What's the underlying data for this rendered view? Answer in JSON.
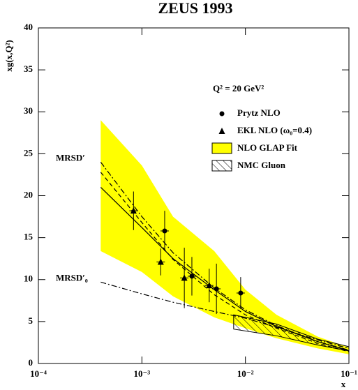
{
  "chart_data": {
    "type": "scatter",
    "title": "ZEUS 1993",
    "y_label": "xg(x,Q²)",
    "x_label": "x",
    "log_x": true,
    "xlim": [
      0.0001,
      0.1
    ],
    "xticks": [
      {
        "value": 0.0001,
        "label": "10⁻⁴"
      },
      {
        "value": 0.001,
        "label": "10⁻³"
      },
      {
        "value": 0.01,
        "label": "10⁻²"
      },
      {
        "value": 0.1,
        "label": "10⁻¹"
      }
    ],
    "ylim": [
      0,
      40
    ],
    "yticks": [
      0,
      5,
      10,
      15,
      20,
      25,
      30,
      35,
      40
    ],
    "legend_title": "Q² = 20 GeV²",
    "series": [
      {
        "name": "Prytz NLO",
        "marker": "circle",
        "color": "#000000",
        "x": [
          0.00166,
          0.00304,
          0.00525,
          0.009
        ],
        "values": [
          15.8,
          10.4,
          8.9,
          8.4
        ],
        "errors": [
          2.4,
          2.3,
          3.0,
          1.9
        ]
      },
      {
        "name": "EKL NLO (ω₀=0.4)",
        "marker": "triangle",
        "color": "#000000",
        "x": [
          0.00083,
          0.00152,
          0.00257,
          0.00447
        ],
        "values": [
          18.2,
          12.1,
          10.2,
          9.3
        ],
        "errors": [
          2.3,
          1.6,
          3.6,
          2.0
        ]
      },
      {
        "name": "NLO GLAP Fit",
        "marker": "band",
        "color": "#ffff00",
        "x": [
          0.0004,
          0.001,
          0.002,
          0.005,
          0.01,
          0.02,
          0.05,
          0.1
        ],
        "upper": [
          29,
          23.6,
          17.5,
          13.4,
          8.8,
          5.8,
          3.2,
          1.9
        ],
        "lower": [
          13.4,
          10.9,
          8.0,
          5.5,
          4.2,
          3.0,
          1.8,
          1.1
        ]
      },
      {
        "name": "NMC Gluon",
        "marker": "hatch",
        "color": "#000000",
        "x": [
          0.0077,
          0.02,
          0.05,
          0.1
        ],
        "upper": [
          5.8,
          4.7,
          2.9,
          2.0
        ],
        "lower": [
          4.1,
          3.3,
          2.2,
          1.5
        ]
      }
    ],
    "curves": [
      {
        "style": "solid",
        "x": [
          0.0004,
          0.001,
          0.002,
          0.005,
          0.01,
          0.02,
          0.05,
          0.1
        ],
        "values": [
          21,
          16.2,
          12.5,
          8.8,
          6.2,
          4.4,
          2.6,
          1.5
        ]
      },
      {
        "style": "dashdot",
        "label": "MRSD′",
        "x": [
          0.0004,
          0.001,
          0.002,
          0.005,
          0.01,
          0.02,
          0.05,
          0.1
        ],
        "values": [
          24,
          17.5,
          13.2,
          9.0,
          6.4,
          4.5,
          2.6,
          1.6
        ]
      },
      {
        "style": "dashed",
        "x": [
          0.0004,
          0.001,
          0.002,
          0.005,
          0.01,
          0.02,
          0.05,
          0.1
        ],
        "values": [
          22.8,
          16.8,
          12.4,
          8.2,
          5.8,
          4.2,
          2.4,
          1.4
        ]
      },
      {
        "style": "dashdot",
        "label": "MRSD′₀",
        "x": [
          0.0004,
          0.001,
          0.002,
          0.005,
          0.01,
          0.02,
          0.05,
          0.1
        ],
        "values": [
          9.7,
          8.3,
          7.3,
          6.2,
          5.4,
          4.3,
          2.8,
          1.8
        ]
      }
    ]
  }
}
